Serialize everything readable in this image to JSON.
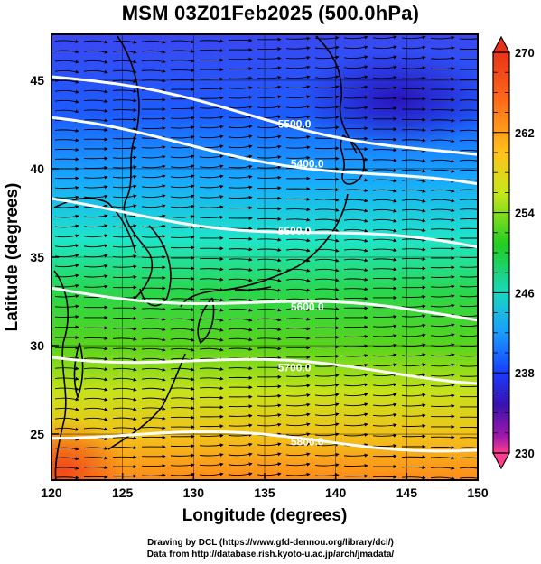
{
  "title": "MSM 03Z01Feb2025 (500.0hPa)",
  "map": {
    "xlabel": "Longitude (degrees)",
    "ylabel": "Latitude  (degrees)",
    "lon_ticks": [
      "120",
      "125",
      "130",
      "135",
      "140",
      "145",
      "150"
    ],
    "lat_ticks": [
      "25",
      "30",
      "35",
      "40",
      "45"
    ],
    "lon_range": [
      120,
      150
    ],
    "lat_range": [
      22.4,
      47.6
    ],
    "field": "temperature (K), colour shaded",
    "contours": [
      {
        "label": "5500.0",
        "lats_at_lon_120_150": [
          45.2,
          40.6
        ]
      },
      {
        "label": "5400.0",
        "lats_at_lon_120_150": [
          42.6,
          38.8
        ]
      },
      {
        "label": "5500.0",
        "lats_at_lon_120_150": [
          38.0,
          35.4
        ]
      },
      {
        "label": "5600.0",
        "lats_at_lon_120_150": [
          33.2,
          31.6
        ]
      },
      {
        "label": "5700.0",
        "lats_at_lon_120_150": [
          29.6,
          28.2
        ]
      },
      {
        "label": "5800.0",
        "lats_at_lon_120_150": [
          25.1,
          24.3
        ]
      }
    ],
    "vectors": "streamline arrows, predominantly westerly flow"
  },
  "colorbar": {
    "labels": [
      "270",
      "262",
      "254",
      "246",
      "238",
      "230"
    ],
    "min": 230,
    "max": 270,
    "colors": [
      "#ff3e8e",
      "#8e1aa6",
      "#2a12b0",
      "#1a3cff",
      "#1a8cff",
      "#18e0ff",
      "#22d99a",
      "#22cc22",
      "#8fe01a",
      "#e8ec18",
      "#ffb41a",
      "#ff6a1a",
      "#e82818"
    ]
  },
  "credits": {
    "line1": "Drawing by DCL (https://www.gfd-dennou.org/library/dcl/)",
    "line2": "Data from http://database.rish.kyoto-u.ac.jp/arch/jmadata/"
  }
}
